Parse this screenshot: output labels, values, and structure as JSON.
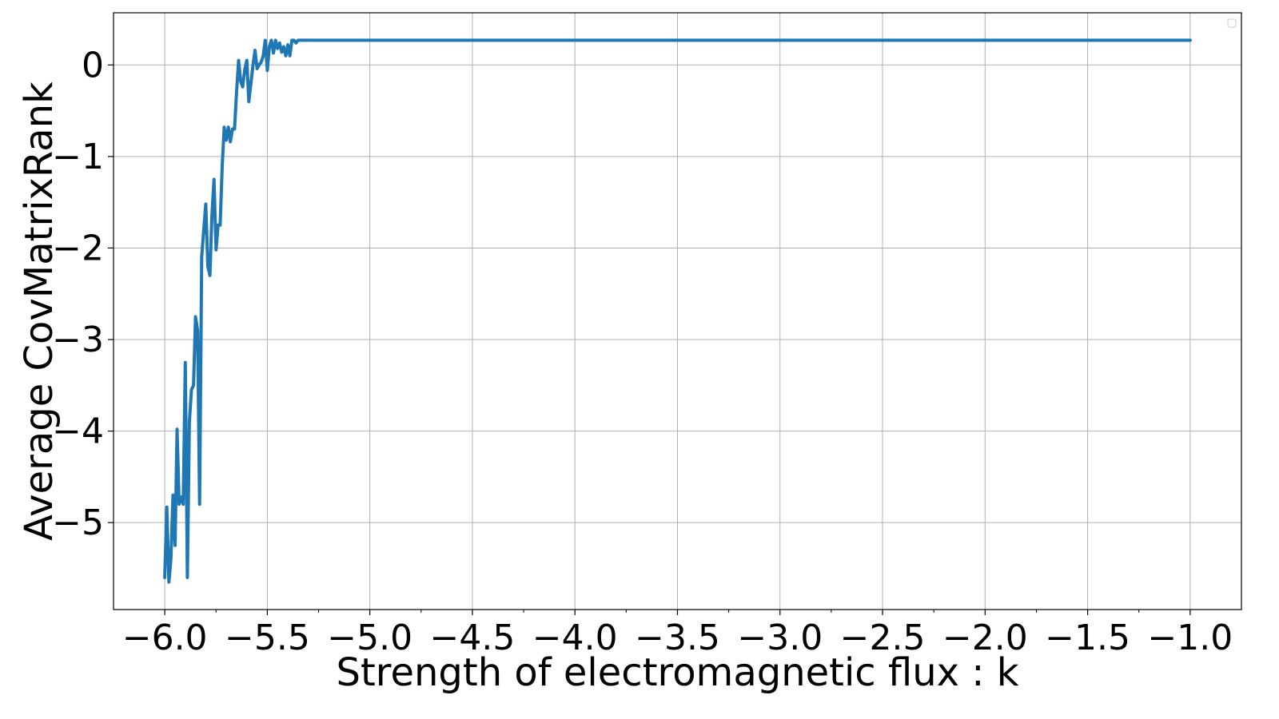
{
  "chart_data": {
    "type": "line",
    "title": "",
    "xlabel": "Strength of electromagnetic flux : k",
    "ylabel": "Average CovMatrixRank",
    "xlim": [
      -6.25,
      -0.75
    ],
    "ylim": [
      -5.95,
      0.57
    ],
    "grid": true,
    "legend": "top-right (empty)",
    "x_ticks": [
      -6.0,
      -5.5,
      -5.0,
      -4.5,
      -4.0,
      -3.5,
      -3.0,
      -2.5,
      -2.0,
      -1.5,
      -1.0
    ],
    "x_tick_labels": [
      "−6.0",
      "−5.5",
      "−5.0",
      "−4.5",
      "−4.0",
      "−3.5",
      "−3.0",
      "−2.5",
      "−2.0",
      "−1.5",
      "−1.0"
    ],
    "y_ticks": [
      0,
      -1,
      -2,
      -3,
      -4,
      -5
    ],
    "y_tick_labels": [
      "0",
      "−1",
      "−2",
      "−3",
      "−4",
      "−5"
    ],
    "colors": {
      "series": "#1f77b4",
      "grid": "#b0b0b0",
      "axes": "#000000"
    },
    "series": [
      {
        "x": [
          -6.0,
          -5.99,
          -5.98,
          -5.97,
          -5.96,
          -5.95,
          -5.94,
          -5.93,
          -5.92,
          -5.91,
          -5.9,
          -5.89,
          -5.88,
          -5.87,
          -5.86,
          -5.85,
          -5.84,
          -5.83,
          -5.82,
          -5.81,
          -5.8,
          -5.79,
          -5.78,
          -5.77,
          -5.76,
          -5.75,
          -5.74,
          -5.73,
          -5.72,
          -5.71,
          -5.7,
          -5.69,
          -5.68,
          -5.67,
          -5.66,
          -5.65,
          -5.64,
          -5.63,
          -5.62,
          -5.61,
          -5.6,
          -5.59,
          -5.58,
          -5.57,
          -5.56,
          -5.55,
          -5.54,
          -5.53,
          -5.52,
          -5.51,
          -5.5,
          -5.49,
          -5.48,
          -5.47,
          -5.46,
          -5.45,
          -5.44,
          -5.43,
          -5.42,
          -5.41,
          -5.4,
          -5.39,
          -5.38,
          -5.37,
          -5.36,
          -5.35,
          -5.34,
          -5.33,
          -5.32,
          -5.3,
          -5.0,
          -4.5,
          -4.0,
          -3.5,
          -3.0,
          -2.5,
          -2.0,
          -1.5,
          -1.0
        ],
        "y": [
          -5.6,
          -4.83,
          -5.65,
          -5.4,
          -4.7,
          -5.25,
          -3.98,
          -4.8,
          -4.72,
          -4.8,
          -3.25,
          -5.6,
          -3.9,
          -3.55,
          -3.5,
          -2.75,
          -2.9,
          -4.8,
          -2.1,
          -1.8,
          -1.52,
          -2.2,
          -2.3,
          -1.65,
          -1.25,
          -2.02,
          -1.75,
          -1.75,
          -1.1,
          -0.68,
          -0.82,
          -0.68,
          -0.84,
          -0.7,
          -0.7,
          -0.3,
          0.05,
          -0.18,
          -0.24,
          -0.05,
          0.05,
          -0.4,
          -0.2,
          0.0,
          0.16,
          -0.04,
          0.0,
          0.03,
          0.1,
          0.27,
          -0.06,
          0.2,
          0.27,
          0.13,
          0.27,
          0.18,
          0.24,
          0.14,
          0.2,
          0.1,
          0.22,
          0.1,
          0.27,
          0.27,
          0.24,
          0.27,
          0.27,
          0.27,
          0.27,
          0.27,
          0.27,
          0.27,
          0.27,
          0.27,
          0.27,
          0.27,
          0.27,
          0.27,
          0.27
        ]
      }
    ]
  }
}
